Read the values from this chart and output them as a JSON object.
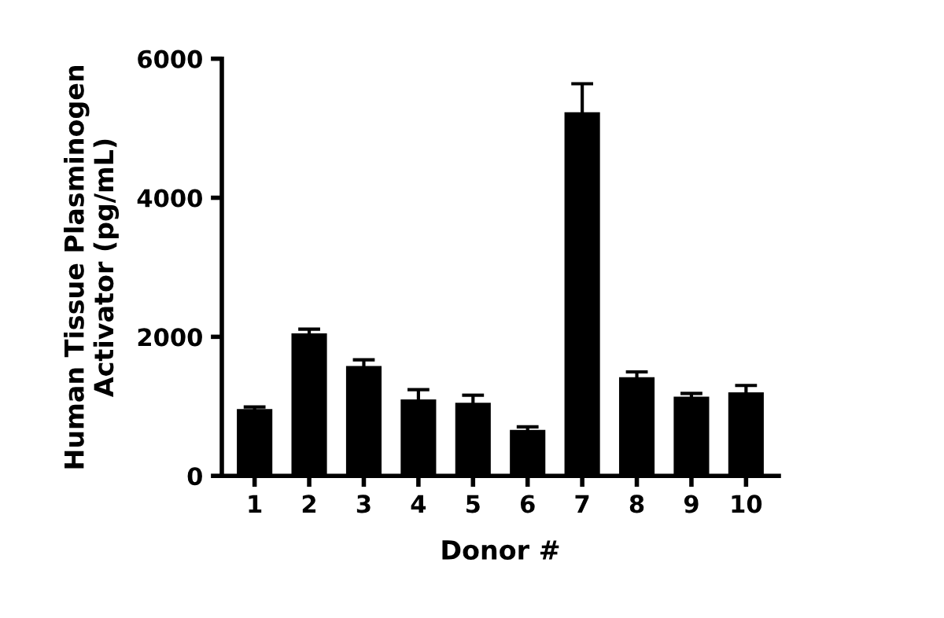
{
  "chart_data": {
    "type": "bar",
    "xlabel": "Donor #",
    "ylabel": "Human Tissue Plasminogen\nActivator (pg/mL)",
    "categories": [
      "1",
      "2",
      "3",
      "4",
      "5",
      "6",
      "7",
      "8",
      "9",
      "10"
    ],
    "values": [
      960,
      2050,
      1580,
      1100,
      1050,
      660,
      5230,
      1420,
      1140,
      1200
    ],
    "errors": [
      30,
      60,
      90,
      140,
      110,
      45,
      410,
      75,
      45,
      100
    ],
    "color": "#000000",
    "ylim": [
      0,
      6000
    ],
    "yticks": [
      0,
      2000,
      4000,
      6000
    ],
    "grid": false
  }
}
